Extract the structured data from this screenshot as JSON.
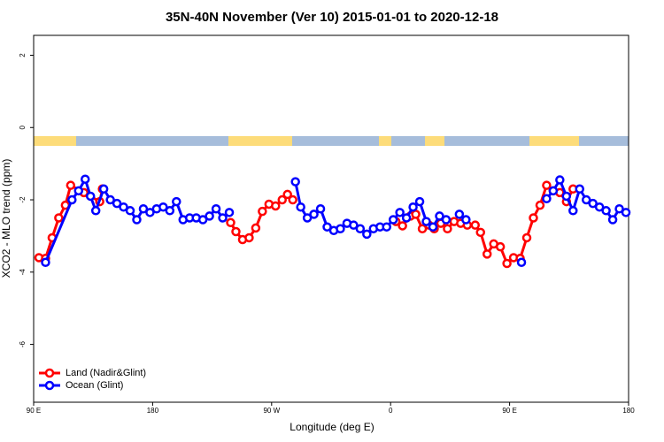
{
  "chart_data": {
    "type": "line",
    "title": "35N-40N November (Ver 10)   2015-01-01 to 2020-12-18",
    "xlabel": "Longitude (deg E)",
    "ylabel": "XCO2 - MLO trend (ppm)",
    "xlim": [
      90,
      540
    ],
    "xticks": [
      {
        "value": 90,
        "label": "90 E"
      },
      180,
      {
        "value": 270,
        "label": "90 W"
      },
      {
        "value": 360,
        "label": "0"
      },
      {
        "value": 450,
        "label": "90 E"
      },
      {
        "value": 540,
        "label": "180"
      }
    ],
    "ylim": [
      -7.6,
      2.55
    ],
    "yticks": [
      2,
      0,
      -2,
      -4,
      -6
    ],
    "grid": false,
    "legend": "bottomleft",
    "series": [
      {
        "name": "Land (Nadir&Glint)",
        "color": "#ff0000",
        "x": [
          94,
          99,
          104,
          109,
          114,
          118,
          128,
          140,
          142,
          null,
          239,
          243,
          248,
          253,
          258,
          263,
          268,
          273,
          278,
          282,
          286,
          null,
          364,
          369,
          375,
          379,
          384,
          389,
          393,
          398,
          403,
          408,
          413,
          418,
          424,
          428,
          433,
          438,
          443,
          448,
          453,
          458,
          463,
          468,
          473,
          478,
          483,
          488,
          493,
          498
        ],
        "values": [
          -3.6,
          -3.62,
          -3.05,
          -2.5,
          -2.15,
          -1.6,
          -1.8,
          -2.05,
          -1.7,
          null,
          -2.63,
          -2.88,
          -3.1,
          -3.05,
          -2.78,
          -2.32,
          -2.12,
          -2.17,
          -2.0,
          -1.85,
          -2.0,
          null,
          -2.6,
          -2.72,
          -2.45,
          -2.4,
          -2.8,
          -2.7,
          -2.8,
          -2.65,
          -2.8,
          -2.6,
          -2.65,
          -2.7,
          -2.7,
          -2.9,
          -3.5,
          -3.22,
          -3.3,
          -3.76,
          -3.6,
          -3.62,
          -3.05,
          -2.5,
          -2.15,
          -1.6,
          -1.75,
          -1.8,
          -2.05,
          -1.7
        ]
      },
      {
        "name": "Ocean (Glint)",
        "color": "#0000ff",
        "x": [
          99,
          119,
          124,
          129,
          133,
          137,
          143,
          148,
          153,
          158,
          163,
          168,
          173,
          178,
          183,
          188,
          193,
          198,
          203,
          208,
          213,
          218,
          223,
          228,
          233,
          238,
          null,
          288,
          292,
          297,
          302,
          307,
          312,
          317,
          322,
          327,
          332,
          337,
          342,
          347,
          352,
          357,
          362,
          367,
          372,
          377,
          382,
          387,
          392,
          397,
          402,
          null,
          412,
          417,
          null,
          459,
          null,
          478,
          483,
          488,
          493,
          498,
          503,
          508,
          513,
          518,
          523,
          528,
          533,
          538
        ],
        "values": [
          -3.73,
          -2.0,
          -1.75,
          -1.43,
          -1.9,
          -2.3,
          -1.7,
          -2.0,
          -2.1,
          -2.2,
          -2.3,
          -2.55,
          -2.25,
          -2.35,
          -2.25,
          -2.2,
          -2.3,
          -2.05,
          -2.55,
          -2.5,
          -2.5,
          -2.55,
          -2.45,
          -2.25,
          -2.5,
          -2.35,
          null,
          -1.5,
          -2.2,
          -2.5,
          -2.4,
          -2.25,
          -2.75,
          -2.85,
          -2.8,
          -2.65,
          -2.7,
          -2.8,
          -2.95,
          -2.8,
          -2.75,
          -2.75,
          -2.55,
          -2.35,
          -2.5,
          -2.2,
          -2.05,
          -2.6,
          -2.75,
          -2.45,
          -2.55,
          null,
          -2.4,
          -2.55,
          null,
          -3.73,
          null,
          -1.97,
          -1.75,
          -1.45,
          -1.9,
          -2.3,
          -1.7,
          -2.0,
          -2.1,
          -2.2,
          -2.3,
          -2.55,
          -2.25,
          -2.35
        ]
      }
    ]
  }
}
